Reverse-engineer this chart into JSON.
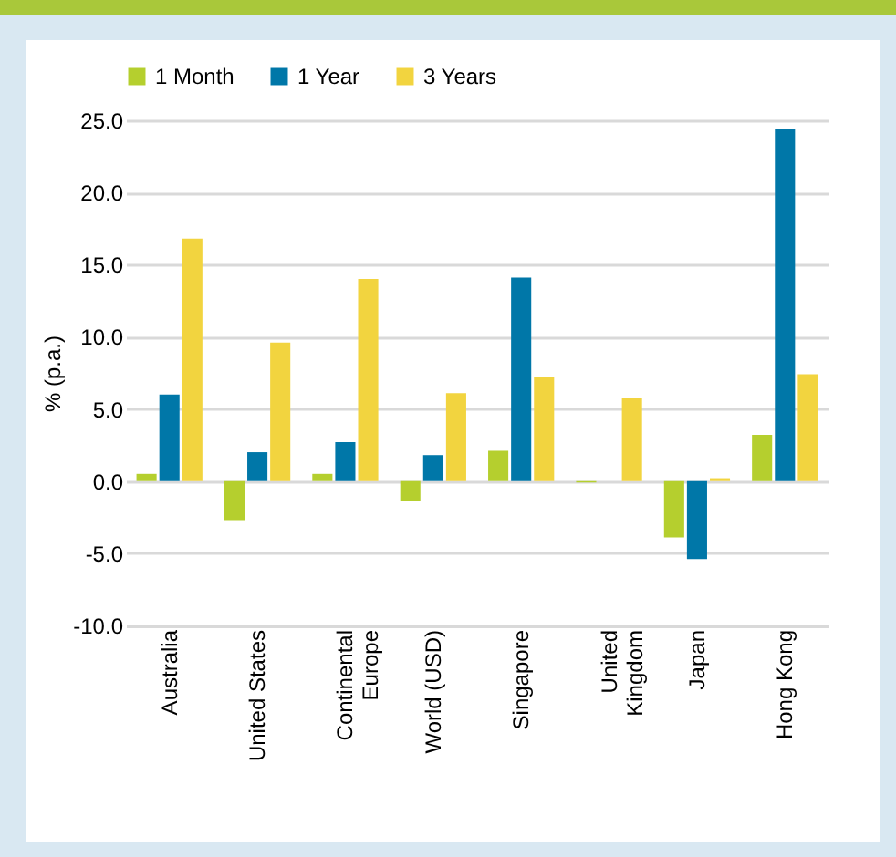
{
  "chart_data": {
    "type": "bar",
    "ylabel": "% (p.a.)",
    "categories": [
      "Australia",
      "United States",
      "Continental\nEurope",
      "World (USD)",
      "Singapore",
      "United\nKingdom",
      "Japan",
      "Hong Kong"
    ],
    "series": [
      {
        "name": "1 Month",
        "color": "#b5cf2e",
        "values": [
          0.5,
          -2.7,
          0.5,
          -1.4,
          2.1,
          -0.1,
          -3.9,
          3.2
        ]
      },
      {
        "name": "1 Year",
        "color": "#0077a8",
        "values": [
          6.0,
          2.0,
          2.7,
          1.8,
          14.1,
          null,
          -5.4,
          24.4
        ]
      },
      {
        "name": "3 Years",
        "color": "#f2d43f",
        "values": [
          16.8,
          9.6,
          14.0,
          6.1,
          7.2,
          5.8,
          0.2,
          7.4
        ]
      }
    ],
    "ylim": [
      -10,
      25
    ],
    "yticks": [
      {
        "value": -10,
        "label": "-10.0"
      },
      {
        "value": -5,
        "label": "-5.0"
      },
      {
        "value": 0,
        "label": "0.0"
      },
      {
        "value": 5,
        "label": "5.0"
      },
      {
        "value": 10,
        "label": "10.0"
      },
      {
        "value": 15,
        "label": "15.0"
      },
      {
        "value": 20,
        "label": "20.0"
      },
      {
        "value": 25,
        "label": "25.0"
      }
    ],
    "grid": "y",
    "legend": "top"
  }
}
